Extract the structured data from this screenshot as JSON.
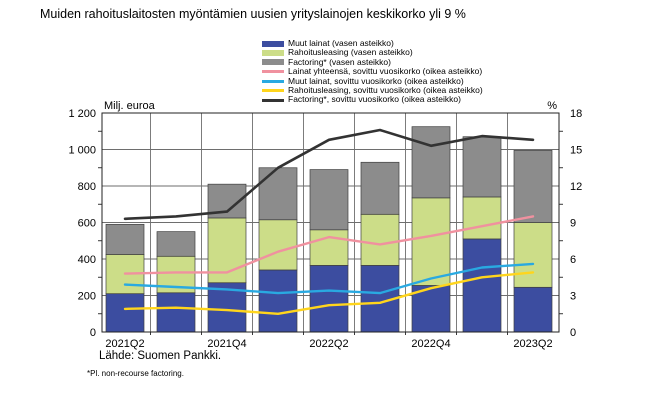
{
  "title": "Muiden rahoituslaitosten myöntämien uusien yrityslainojen keskikorko yli 9 %",
  "source": "Lähde: Suomen Pankki.",
  "footnote": "*Pl. non-recourse factoring.",
  "left_axis": {
    "title": "Milj. euroa",
    "tick_values": [
      0,
      200,
      400,
      600,
      800,
      1000,
      1200
    ],
    "tick_labels": [
      "0",
      "200",
      "400",
      "600",
      "800",
      "1 000",
      "1 200"
    ]
  },
  "right_axis": {
    "title": "%",
    "tick_values": [
      0,
      3,
      6,
      9,
      12,
      15,
      18
    ],
    "tick_labels": [
      "0",
      "3",
      "6",
      "9",
      "12",
      "15",
      "18"
    ]
  },
  "legend": [
    {
      "label": "Muut lainat (vasen asteikko)",
      "kind": "bar",
      "color": "#3c4da0"
    },
    {
      "label": "Rahoitusleasing (vasen asteikko)",
      "kind": "bar",
      "color": "#ccdd88"
    },
    {
      "label": "Factoring* (vasen asteikko)",
      "kind": "bar",
      "color": "#8c8c8c"
    },
    {
      "label": "Lainat yhteensä, sovittu vuosikorko (oikea asteikko)",
      "kind": "line",
      "color": "#f0919f"
    },
    {
      "label": "Muut lainat, sovittu vuosikorko (oikea asteikko)",
      "kind": "line",
      "color": "#29a9e1"
    },
    {
      "label": "Rahoitusleasing, sovittu vuosikorko (oikea asteikko)",
      "kind": "line",
      "color": "#ffd51c"
    },
    {
      "label": "Factoring*, sovittu vuosikorko (oikea asteikko)",
      "kind": "line",
      "color": "#333333"
    }
  ],
  "chart_data": {
    "type": "bar",
    "subtype": "stacked-bars-with-lines",
    "title": "Muiden rahoituslaitosten myöntämien uusien yrityslainojen keskikorko yli 9 %",
    "categories": [
      "2021Q2",
      "2021Q3",
      "2021Q4",
      "2022Q1",
      "2022Q2",
      "2022Q3",
      "2022Q4",
      "2023Q1",
      "2023Q2"
    ],
    "x_ticks_shown": [
      "2021Q2",
      "2021Q4",
      "2022Q2",
      "2022Q4",
      "2023Q2"
    ],
    "left_ylabel": "Milj. euroa",
    "right_ylabel": "%",
    "left_ylim": [
      0,
      1200
    ],
    "right_ylim": [
      0,
      18
    ],
    "grid": true,
    "legend_position": "top",
    "bar_series": [
      {
        "name": "Muut lainat (vasen asteikko)",
        "axis": "left",
        "color": "#3c4da0",
        "values": [
          210,
          215,
          270,
          340,
          365,
          365,
          255,
          510,
          245
        ]
      },
      {
        "name": "Rahoitusleasing (vasen asteikko)",
        "axis": "left",
        "color": "#ccdd88",
        "values": [
          215,
          200,
          355,
          275,
          195,
          280,
          480,
          230,
          355
        ]
      },
      {
        "name": "Factoring* (vasen asteikko)",
        "axis": "left",
        "color": "#8c8c8c",
        "values": [
          165,
          135,
          185,
          285,
          330,
          285,
          390,
          330,
          395
        ]
      }
    ],
    "line_series": [
      {
        "name": "Lainat yhteensä, sovittu vuosikorko (oikea asteikko)",
        "axis": "right",
        "color": "#f0919f",
        "values": [
          4.8,
          4.9,
          4.9,
          6.6,
          7.8,
          7.2,
          7.9,
          8.7,
          9.5
        ]
      },
      {
        "name": "Muut lainat, sovittu vuosikorko (oikea asteikko)",
        "axis": "right",
        "color": "#29a9e1",
        "values": [
          3.9,
          3.7,
          3.5,
          3.2,
          3.4,
          3.2,
          4.4,
          5.3,
          5.6
        ]
      },
      {
        "name": "Rahoitusleasing, sovittu vuosikorko (oikea asteikko)",
        "axis": "right",
        "color": "#ffd51c",
        "values": [
          1.9,
          2.0,
          1.8,
          1.5,
          2.2,
          2.4,
          3.6,
          4.5,
          4.9
        ]
      },
      {
        "name": "Factoring*, sovittu vuosikorko (oikea asteikko)",
        "axis": "right",
        "color": "#333333",
        "values": [
          9.3,
          9.5,
          9.9,
          13.5,
          15.8,
          16.6,
          15.3,
          16.1,
          15.8
        ]
      }
    ]
  }
}
